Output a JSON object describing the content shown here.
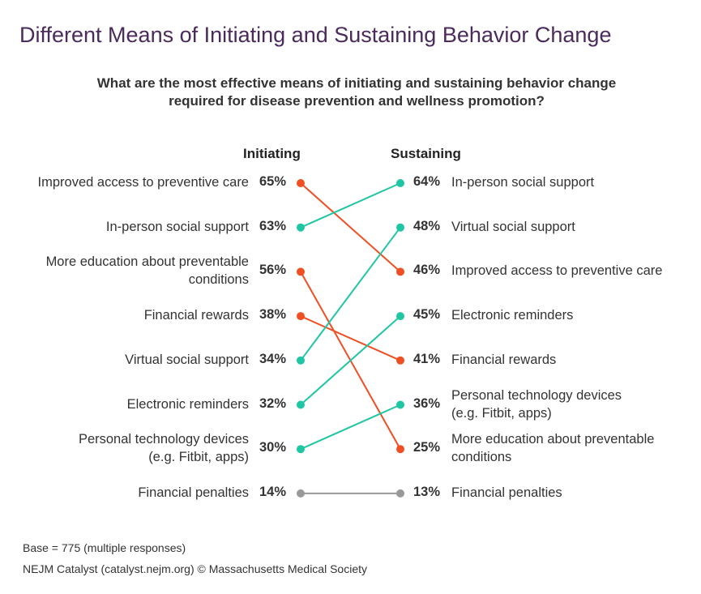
{
  "title": "Different Means of Initiating and Sustaining Behavior Change",
  "subtitle_line1": "What are the most effective means of initiating and sustaining behavior change",
  "subtitle_line2": "required for disease prevention and wellness promotion?",
  "footnote_base": "Base = 775 (multiple responses)",
  "footnote_source": "NEJM Catalyst (catalyst.nejm.org) © Massachusetts Medical Society",
  "chart_data": {
    "type": "slope",
    "title": "Different Means of Initiating and Sustaining Behavior Change",
    "subtitle": "What are the most effective means of initiating and sustaining behavior change required for disease prevention and wellness promotion?",
    "left_label": "Initiating",
    "right_label": "Sustaining",
    "colors": {
      "decrease": "#f04e23",
      "increase": "#1fc6a3",
      "neutral": "#999999"
    },
    "left_items": [
      {
        "lines": [
          "Improved access to preventive care"
        ],
        "pct": "65%"
      },
      {
        "lines": [
          "In-person social support"
        ],
        "pct": "63%"
      },
      {
        "lines": [
          "More education about preventable",
          "conditions"
        ],
        "pct": "56%"
      },
      {
        "lines": [
          "Financial rewards"
        ],
        "pct": "38%"
      },
      {
        "lines": [
          "Virtual social support"
        ],
        "pct": "34%"
      },
      {
        "lines": [
          "Electronic reminders"
        ],
        "pct": "32%"
      },
      {
        "lines": [
          "Personal technology devices",
          "(e.g. Fitbit, apps)"
        ],
        "pct": "30%"
      },
      {
        "lines": [
          "Financial penalties"
        ],
        "pct": "14%"
      }
    ],
    "right_items": [
      {
        "lines": [
          "In-person social support"
        ],
        "pct": "64%"
      },
      {
        "lines": [
          "Virtual social support"
        ],
        "pct": "48%"
      },
      {
        "lines": [
          "Improved access to preventive care"
        ],
        "pct": "46%"
      },
      {
        "lines": [
          "Electronic reminders"
        ],
        "pct": "45%"
      },
      {
        "lines": [
          "Financial rewards"
        ],
        "pct": "41%"
      },
      {
        "lines": [
          "Personal technology devices",
          "(e.g. Fitbit, apps)"
        ],
        "pct": "36%"
      },
      {
        "lines": [
          "More education about preventable",
          "conditions"
        ],
        "pct": "25%"
      },
      {
        "lines": [
          "Financial penalties"
        ],
        "pct": "13%"
      }
    ],
    "series": [
      {
        "name": "Improved access to preventive care",
        "initiating": 65,
        "sustaining": 46,
        "initiating_rank": 1,
        "sustaining_rank": 3,
        "trend": "decrease"
      },
      {
        "name": "In-person social support",
        "initiating": 63,
        "sustaining": 64,
        "initiating_rank": 2,
        "sustaining_rank": 1,
        "trend": "increase"
      },
      {
        "name": "More education about preventable conditions",
        "initiating": 56,
        "sustaining": 25,
        "initiating_rank": 3,
        "sustaining_rank": 7,
        "trend": "decrease"
      },
      {
        "name": "Financial rewards",
        "initiating": 38,
        "sustaining": 41,
        "initiating_rank": 4,
        "sustaining_rank": 5,
        "trend": "decrease"
      },
      {
        "name": "Virtual social support",
        "initiating": 34,
        "sustaining": 48,
        "initiating_rank": 5,
        "sustaining_rank": 2,
        "trend": "increase"
      },
      {
        "name": "Electronic reminders",
        "initiating": 32,
        "sustaining": 45,
        "initiating_rank": 6,
        "sustaining_rank": 4,
        "trend": "increase"
      },
      {
        "name": "Personal technology devices (e.g. Fitbit, apps)",
        "initiating": 30,
        "sustaining": 36,
        "initiating_rank": 7,
        "sustaining_rank": 6,
        "trend": "increase"
      },
      {
        "name": "Financial penalties",
        "initiating": 14,
        "sustaining": 13,
        "initiating_rank": 8,
        "sustaining_rank": 8,
        "trend": "neutral"
      }
    ]
  }
}
